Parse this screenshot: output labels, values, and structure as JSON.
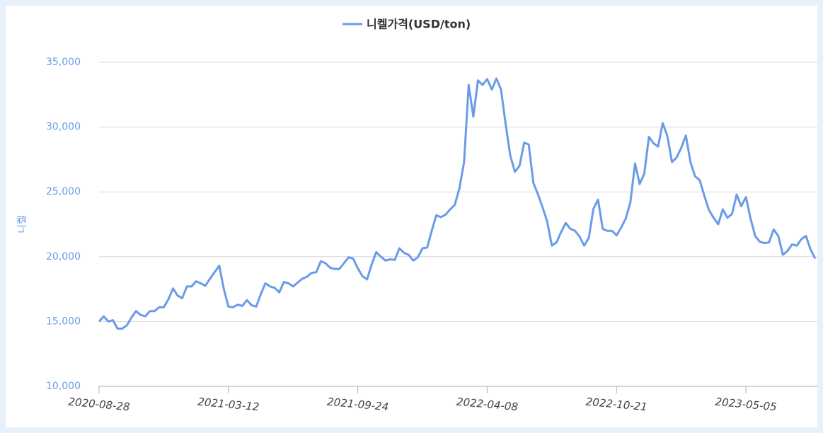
{
  "chart_data": {
    "type": "line",
    "y_label": "니켈",
    "categories": [
      "2020-08-28",
      null,
      null,
      null,
      null,
      null,
      null,
      null,
      null,
      null,
      null,
      null,
      null,
      null,
      null,
      null,
      null,
      null,
      null,
      null,
      null,
      null,
      null,
      null,
      null,
      null,
      null,
      null,
      "2021-03-12",
      null,
      null,
      null,
      null,
      null,
      null,
      null,
      null,
      null,
      null,
      null,
      null,
      null,
      null,
      null,
      null,
      null,
      null,
      null,
      null,
      null,
      null,
      null,
      null,
      null,
      null,
      null,
      "2021-09-24",
      null,
      null,
      null,
      null,
      null,
      null,
      null,
      null,
      null,
      null,
      null,
      null,
      null,
      null,
      null,
      null,
      null,
      null,
      null,
      null,
      null,
      null,
      null,
      null,
      null,
      null,
      null,
      "2022-04-08",
      null,
      null,
      null,
      null,
      null,
      null,
      null,
      null,
      null,
      null,
      null,
      null,
      null,
      null,
      null,
      null,
      null,
      null,
      null,
      null,
      null,
      null,
      null,
      null,
      null,
      null,
      null,
      "2022-10-21",
      null,
      null,
      null,
      null,
      null,
      null,
      null,
      null,
      null,
      null,
      null,
      null,
      null,
      null,
      null,
      null,
      null,
      null,
      null,
      null,
      null,
      null,
      null,
      null,
      null,
      null,
      null,
      "2023-05-05",
      null,
      null,
      null,
      null,
      null,
      null,
      null,
      null,
      null,
      null,
      null,
      null,
      null,
      null,
      null
    ],
    "series": [
      {
        "name": "니켈가격(USD/ton)",
        "color": "#6a9be8",
        "values": [
          15000,
          15400,
          15000,
          15100,
          14450,
          14450,
          14700,
          15300,
          15800,
          15500,
          15400,
          15800,
          15800,
          16100,
          16100,
          16700,
          17550,
          17000,
          16800,
          17700,
          17700,
          18100,
          17950,
          17750,
          18300,
          18800,
          19300,
          17500,
          16150,
          16100,
          16300,
          16200,
          16650,
          16250,
          16150,
          17100,
          17950,
          17700,
          17600,
          17250,
          18050,
          17950,
          17700,
          18000,
          18300,
          18450,
          18750,
          18800,
          19650,
          19500,
          19150,
          19050,
          19050,
          19500,
          19950,
          19850,
          19100,
          18500,
          18250,
          19400,
          20350,
          20000,
          19700,
          19800,
          19750,
          20650,
          20300,
          20150,
          19700,
          19950,
          20650,
          20700,
          22000,
          23200,
          23050,
          23250,
          23650,
          24000,
          25300,
          27300,
          33250,
          30800,
          33600,
          33250,
          33700,
          32900,
          33750,
          32900,
          30200,
          27800,
          26550,
          27000,
          28800,
          28650,
          25700,
          24800,
          23800,
          22700,
          20850,
          21100,
          21900,
          22600,
          22150,
          22000,
          21550,
          20850,
          21450,
          23700,
          24400,
          22150,
          22000,
          22000,
          21650,
          22250,
          22950,
          24200,
          27200,
          25600,
          26400,
          29250,
          28750,
          28500,
          30300,
          29300,
          27300,
          27650,
          28400,
          29350,
          27300,
          26200,
          25900,
          24700,
          23600,
          23000,
          22500,
          23650,
          23000,
          23300,
          24800,
          23900,
          24600,
          22950,
          21600,
          21150,
          21050,
          21100,
          22100,
          21600,
          20150,
          20450,
          20950,
          20850,
          21350,
          21600,
          20550,
          19850
        ]
      }
    ],
    "ylim": [
      10000,
      35000
    ],
    "yticks": [
      {
        "value": 10000,
        "label": "10,000"
      },
      {
        "value": 15000,
        "label": "15,000"
      },
      {
        "value": 20000,
        "label": "20,000"
      },
      {
        "value": 25000,
        "label": "25,000"
      },
      {
        "value": 30000,
        "label": "30,000"
      },
      {
        "value": 35000,
        "label": "35,000"
      }
    ],
    "grid": true,
    "legend": "top"
  }
}
